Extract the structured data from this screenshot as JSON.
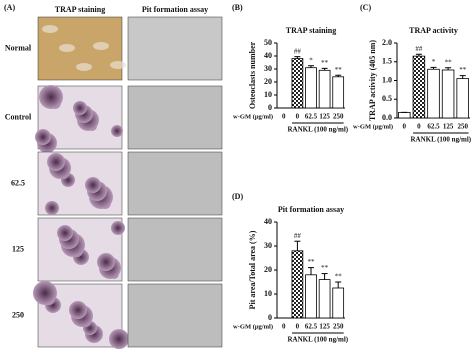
{
  "panel_a": {
    "label": "(A)",
    "columns": [
      "TRAP staining",
      "Pit formation assay"
    ],
    "rows": [
      "Normal",
      "Control",
      "62.5",
      "125",
      "250"
    ]
  },
  "chart_data": [
    {
      "type": "bar",
      "panel": "(B)",
      "title": "TRAP staining",
      "y_label": "Osteoclasts number",
      "x_prefix": "w-GM (μg/ml)",
      "group_label": "RANKL (100 ng/ml)",
      "categories": [
        "0",
        "0",
        "62.5",
        "125",
        "250"
      ],
      "values": [
        0,
        38,
        31,
        29,
        24
      ],
      "errors": [
        0,
        1.5,
        1.5,
        1.5,
        1.2
      ],
      "annotations": [
        null,
        "##",
        "*",
        "**",
        "**"
      ],
      "patterns": [
        "plain",
        "check",
        "plain",
        "plain",
        "plain"
      ],
      "ylim": [
        0,
        50
      ],
      "yticks": [
        0,
        10,
        20,
        30,
        40,
        50
      ]
    },
    {
      "type": "bar",
      "panel": "(C)",
      "title": "TRAP activity",
      "y_label": "TRAP activity (405 nm)",
      "x_prefix": "w-GM (μg/ml)",
      "group_label": "RANKL (100 ng/ml)",
      "categories": [
        "0",
        "0",
        "62.5",
        "125",
        "250"
      ],
      "values": [
        0.15,
        1.65,
        1.3,
        1.28,
        1.05
      ],
      "errors": [
        0,
        0.05,
        0.05,
        0.06,
        0.08
      ],
      "annotations": [
        null,
        "##",
        "*",
        "**",
        "**"
      ],
      "patterns": [
        "plain",
        "check",
        "plain",
        "plain",
        "plain"
      ],
      "ylim": [
        0,
        2
      ],
      "yticks": [
        {
          "value": 0,
          "label": "0.0"
        },
        {
          "value": 0.5,
          "label": "0.5"
        },
        {
          "value": 1,
          "label": "1.0"
        },
        {
          "value": 1.5,
          "label": "1.5"
        },
        {
          "value": 2,
          "label": "2.0"
        }
      ]
    },
    {
      "type": "bar",
      "panel": "(D)",
      "title": "Pit formation assay",
      "y_label": "Pit area/Total area (%)",
      "x_prefix": "w-GM (μg/ml)",
      "group_label": "RANKL (100 ng/ml)",
      "categories": [
        "0",
        "0",
        "62.5",
        "125",
        "250"
      ],
      "values": [
        0,
        28,
        18,
        16,
        12.5
      ],
      "errors": [
        0,
        4,
        3,
        2.5,
        2.5
      ],
      "annotations": [
        null,
        "##",
        "**",
        "**",
        "**"
      ],
      "patterns": [
        "plain",
        "check",
        "plain",
        "plain",
        "plain"
      ],
      "ylim": [
        0,
        40
      ],
      "yticks": [
        0,
        10,
        20,
        30,
        40
      ]
    }
  ]
}
